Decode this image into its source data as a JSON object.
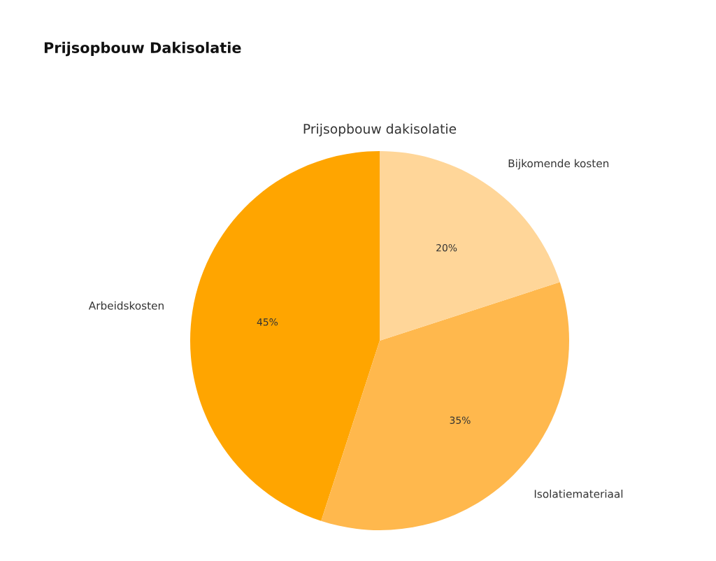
{
  "chart_data": {
    "type": "pie",
    "title": "Prijsopbouw Dakisolatie",
    "subtitle": "Prijsopbouw dakisolatie",
    "categories": [
      "Arbeidskosten",
      "Isolatiemateriaal",
      "Bijkomende kosten"
    ],
    "values": [
      45,
      35,
      20
    ],
    "colors": [
      "#ffa500",
      "#ffb84d",
      "#ffd699"
    ],
    "value_labels": [
      "45%",
      "35%",
      "20%"
    ]
  }
}
